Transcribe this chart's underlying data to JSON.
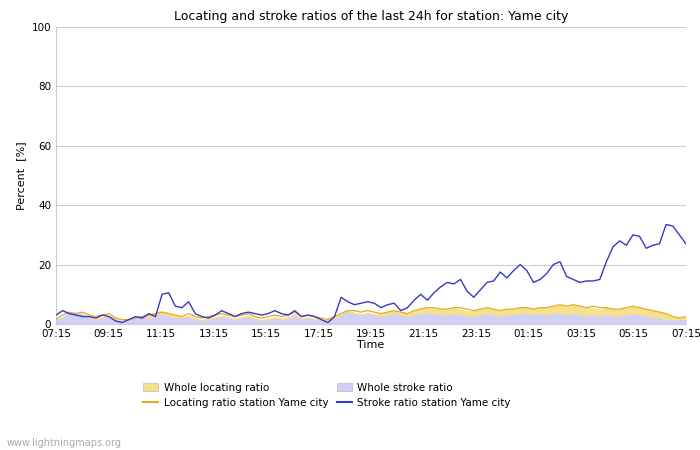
{
  "title": "Locating and stroke ratios of the last 24h for station: Yame city",
  "xlabel": "Time",
  "ylabel": "Percent  [%]",
  "xlim": [
    0,
    96
  ],
  "ylim": [
    0,
    100
  ],
  "yticks": [
    0,
    20,
    40,
    60,
    80,
    100
  ],
  "xtick_labels": [
    "07:15",
    "09:15",
    "11:15",
    "13:15",
    "15:15",
    "17:15",
    "19:15",
    "21:15",
    "23:15",
    "01:15",
    "03:15",
    "05:15",
    "07:15"
  ],
  "xtick_positions": [
    0,
    8,
    16,
    24,
    32,
    40,
    48,
    56,
    64,
    72,
    80,
    88,
    96
  ],
  "background_color": "#ffffff",
  "plot_bg_color": "#ffffff",
  "grid_color": "#cccccc",
  "watermark": "www.lightningmaps.org",
  "whole_locating_color": "#f5e090",
  "whole_stroke_color": "#d0d0f8",
  "locating_station_color": "#e8a820",
  "stroke_station_color": "#3838c8",
  "whole_locating": [
    1.5,
    2.0,
    3.5,
    4.0,
    3.5,
    2.5,
    2.0,
    2.5,
    3.0,
    2.0,
    1.5,
    2.0,
    2.5,
    3.0,
    3.5,
    4.0,
    4.5,
    3.5,
    3.0,
    2.5,
    3.0,
    2.0,
    1.5,
    2.0,
    2.5,
    3.0,
    2.5,
    2.0,
    2.5,
    3.0,
    2.0,
    1.5,
    2.0,
    2.5,
    2.0,
    2.5,
    3.5,
    2.0,
    2.5,
    2.0,
    1.5,
    1.5,
    2.5,
    3.5,
    4.5,
    4.0,
    3.5,
    4.0,
    3.5,
    3.5,
    4.0,
    4.5,
    4.0,
    3.5,
    4.5,
    5.0,
    5.5,
    5.5,
    5.0,
    5.0,
    5.5,
    5.0,
    4.5,
    4.5,
    5.0,
    5.5,
    5.0,
    4.5,
    5.0,
    5.0,
    5.5,
    5.5,
    5.0,
    5.5,
    5.5,
    6.0,
    6.5,
    6.0,
    6.5,
    6.0,
    5.5,
    5.5,
    5.0,
    5.5,
    5.0,
    5.0,
    5.5,
    6.0,
    5.5,
    5.0,
    4.5,
    4.0,
    3.5,
    2.5,
    2.0,
    2.5
  ],
  "whole_stroke": [
    1.5,
    2.5,
    4.0,
    3.5,
    3.5,
    2.0,
    1.5,
    2.0,
    2.5,
    1.5,
    1.0,
    1.5,
    2.0,
    2.5,
    2.0,
    2.5,
    3.5,
    2.5,
    2.0,
    2.0,
    2.5,
    1.5,
    1.0,
    1.5,
    2.0,
    2.5,
    2.0,
    1.5,
    2.0,
    2.5,
    1.5,
    1.0,
    1.5,
    2.0,
    1.5,
    2.0,
    3.0,
    1.5,
    2.0,
    1.5,
    1.0,
    1.0,
    2.0,
    3.0,
    4.0,
    3.5,
    3.0,
    3.5,
    3.0,
    2.5,
    3.0,
    3.5,
    3.0,
    2.5,
    3.0,
    3.5,
    3.5,
    3.5,
    3.0,
    3.0,
    3.5,
    3.0,
    2.5,
    2.5,
    3.0,
    3.5,
    3.0,
    2.5,
    3.0,
    3.0,
    3.5,
    3.5,
    3.0,
    3.5,
    3.0,
    3.5,
    3.5,
    3.0,
    3.5,
    3.0,
    2.5,
    3.0,
    2.5,
    3.0,
    2.5,
    2.5,
    3.0,
    3.5,
    3.0,
    2.5,
    2.0,
    2.0,
    1.5,
    1.5,
    1.5,
    1.5
  ],
  "locating_station": [
    1.5,
    3.0,
    4.0,
    3.5,
    4.0,
    3.0,
    2.5,
    3.0,
    3.5,
    2.0,
    1.5,
    1.5,
    2.0,
    2.5,
    3.0,
    3.5,
    4.0,
    3.5,
    3.0,
    2.5,
    3.5,
    2.5,
    2.0,
    2.5,
    3.0,
    3.5,
    3.0,
    2.5,
    3.0,
    3.5,
    2.5,
    2.0,
    2.5,
    3.0,
    2.5,
    3.0,
    4.0,
    2.5,
    3.0,
    2.5,
    2.0,
    1.5,
    2.5,
    3.5,
    4.5,
    4.5,
    4.0,
    4.5,
    4.0,
    3.5,
    4.0,
    4.5,
    4.0,
    3.5,
    4.5,
    5.0,
    5.5,
    5.5,
    5.0,
    5.0,
    5.5,
    5.5,
    5.0,
    4.5,
    5.0,
    5.5,
    5.0,
    4.5,
    5.0,
    5.0,
    5.5,
    5.5,
    5.0,
    5.5,
    5.5,
    6.0,
    6.5,
    6.0,
    6.5,
    6.0,
    5.5,
    6.0,
    5.5,
    5.5,
    5.0,
    5.0,
    5.5,
    6.0,
    5.5,
    5.0,
    4.5,
    4.0,
    3.5,
    2.5,
    2.0,
    2.5
  ],
  "stroke_station": [
    3.0,
    4.5,
    3.5,
    3.0,
    2.5,
    2.5,
    2.0,
    3.0,
    2.5,
    1.0,
    0.5,
    1.5,
    2.5,
    2.0,
    3.5,
    2.5,
    10.0,
    10.5,
    6.0,
    5.5,
    7.5,
    3.5,
    2.5,
    2.0,
    3.0,
    4.5,
    3.5,
    2.5,
    3.5,
    4.0,
    3.5,
    3.0,
    3.5,
    4.5,
    3.5,
    3.0,
    4.5,
    2.5,
    3.0,
    2.5,
    1.5,
    0.5,
    2.5,
    9.0,
    7.5,
    6.5,
    7.0,
    7.5,
    7.0,
    5.5,
    6.5,
    7.0,
    4.5,
    5.5,
    8.0,
    10.0,
    8.0,
    10.5,
    12.5,
    14.0,
    13.5,
    15.0,
    11.0,
    9.0,
    11.5,
    14.0,
    14.5,
    17.5,
    15.5,
    18.0,
    20.0,
    18.0,
    14.0,
    15.0,
    17.0,
    20.0,
    21.0,
    16.0,
    15.0,
    14.0,
    14.5,
    14.5,
    15.0,
    21.0,
    26.0,
    28.0,
    26.5,
    30.0,
    29.5,
    25.5,
    26.5,
    27.0,
    33.5,
    33.0,
    30.0,
    27.0
  ],
  "title_fontsize": 9,
  "tick_fontsize": 7.5,
  "ylabel_fontsize": 8,
  "xlabel_fontsize": 8,
  "legend_fontsize": 7.5,
  "watermark_fontsize": 7
}
